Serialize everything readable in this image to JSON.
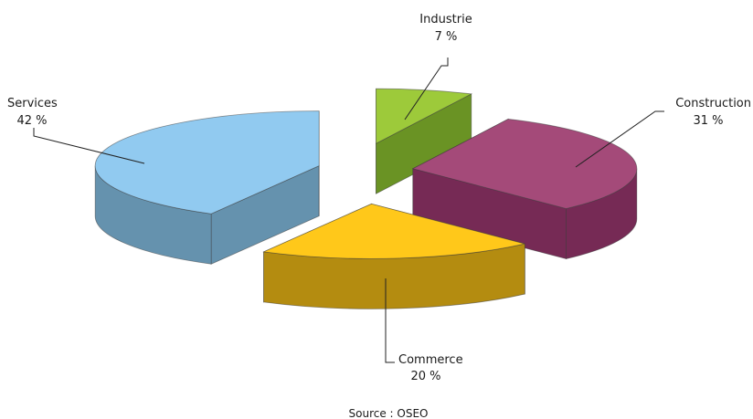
{
  "chart_data": {
    "type": "pie",
    "style": "3d-exploded",
    "title": "",
    "slices": [
      {
        "label": "Industrie",
        "value": 7,
        "value_label": "7 %",
        "top_color": "#9DCA3A",
        "side_color": "#6A9324"
      },
      {
        "label": "Construction",
        "value": 31,
        "value_label": "31 %",
        "top_color": "#A44A79",
        "side_color": "#762A55"
      },
      {
        "label": "Commerce",
        "value": 20,
        "value_label": "20 %",
        "top_color": "#FFC81A",
        "side_color": "#B48C10"
      },
      {
        "label": "Services",
        "value": 42,
        "value_label": "42 %",
        "top_color": "#91CAF0",
        "side_color": "#6592AE"
      }
    ],
    "source": "Source : OSEO"
  }
}
